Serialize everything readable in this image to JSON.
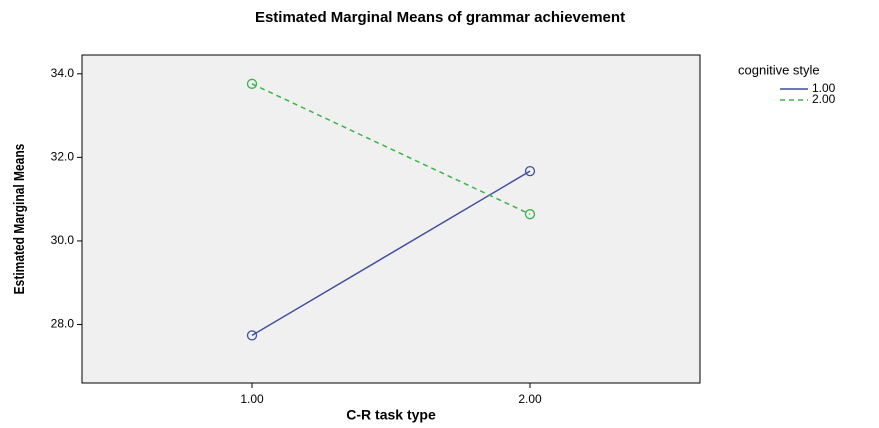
{
  "chart_data": {
    "type": "line",
    "title": "Estimated Marginal Means of grammar achievement",
    "x_label": "C-R task type",
    "y_label": "Estimated Marginal Means",
    "legend_title": "cognitive style",
    "categories": [
      "1.00",
      "2.00"
    ],
    "series": [
      {
        "name": "1.00",
        "color": "#3f4ea1",
        "line_style": "solid",
        "values": [
          27.74,
          31.67
        ]
      },
      {
        "name": "2.00",
        "color": "#3cb44a",
        "line_style": "dashed",
        "values": [
          33.76,
          30.64
        ]
      }
    ],
    "ylim": [
      26.6,
      34.45
    ],
    "yticks": [
      {
        "value": 28,
        "label": "28.0"
      },
      {
        "value": 30,
        "label": "30.0"
      },
      {
        "value": 32,
        "label": "32.0"
      },
      {
        "value": 34,
        "label": "34.0"
      }
    ],
    "legend": "right"
  }
}
